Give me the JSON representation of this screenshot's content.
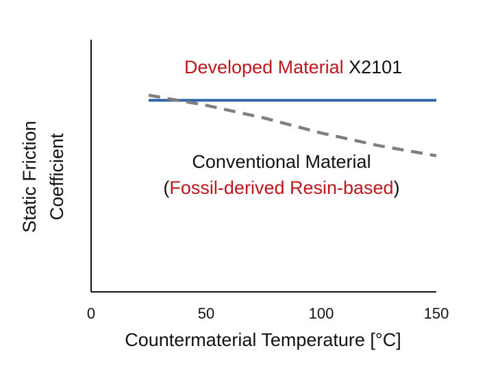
{
  "chart_data": {
    "type": "line",
    "xlabel": "Countermaterial Temperature [°C]",
    "ylabel": [
      "Static Friction",
      "Coefficient"
    ],
    "xlim": [
      0,
      150
    ],
    "xticks": [
      0,
      50,
      100,
      150
    ],
    "yticks_shown": false,
    "ylim": [
      0,
      1
    ],
    "grid": false,
    "series": [
      {
        "name": "Developed Material X2101",
        "style": "solid",
        "color": "#2e64a8",
        "x": [
          25,
          150
        ],
        "y": [
          0.76,
          0.76
        ]
      },
      {
        "name": "Conventional Material (Fossil-derived Resin-based)",
        "style": "dashed",
        "color": "#7f7f7f",
        "x": [
          25,
          50,
          75,
          100,
          125,
          150
        ],
        "y": [
          0.78,
          0.74,
          0.69,
          0.63,
          0.58,
          0.54
        ]
      }
    ],
    "annotations": {
      "developed": {
        "part1": "Developed Material",
        "part2": " X2101"
      },
      "conventional": {
        "line1": "Conventional Material",
        "open_paren": "(",
        "red": "Fossil-derived Resin-based",
        "close_paren": ")"
      }
    }
  },
  "colors": {
    "red": "#c0141b",
    "blue": "#2e64a8",
    "gray": "#7f7f7f",
    "axis": "#111111"
  }
}
